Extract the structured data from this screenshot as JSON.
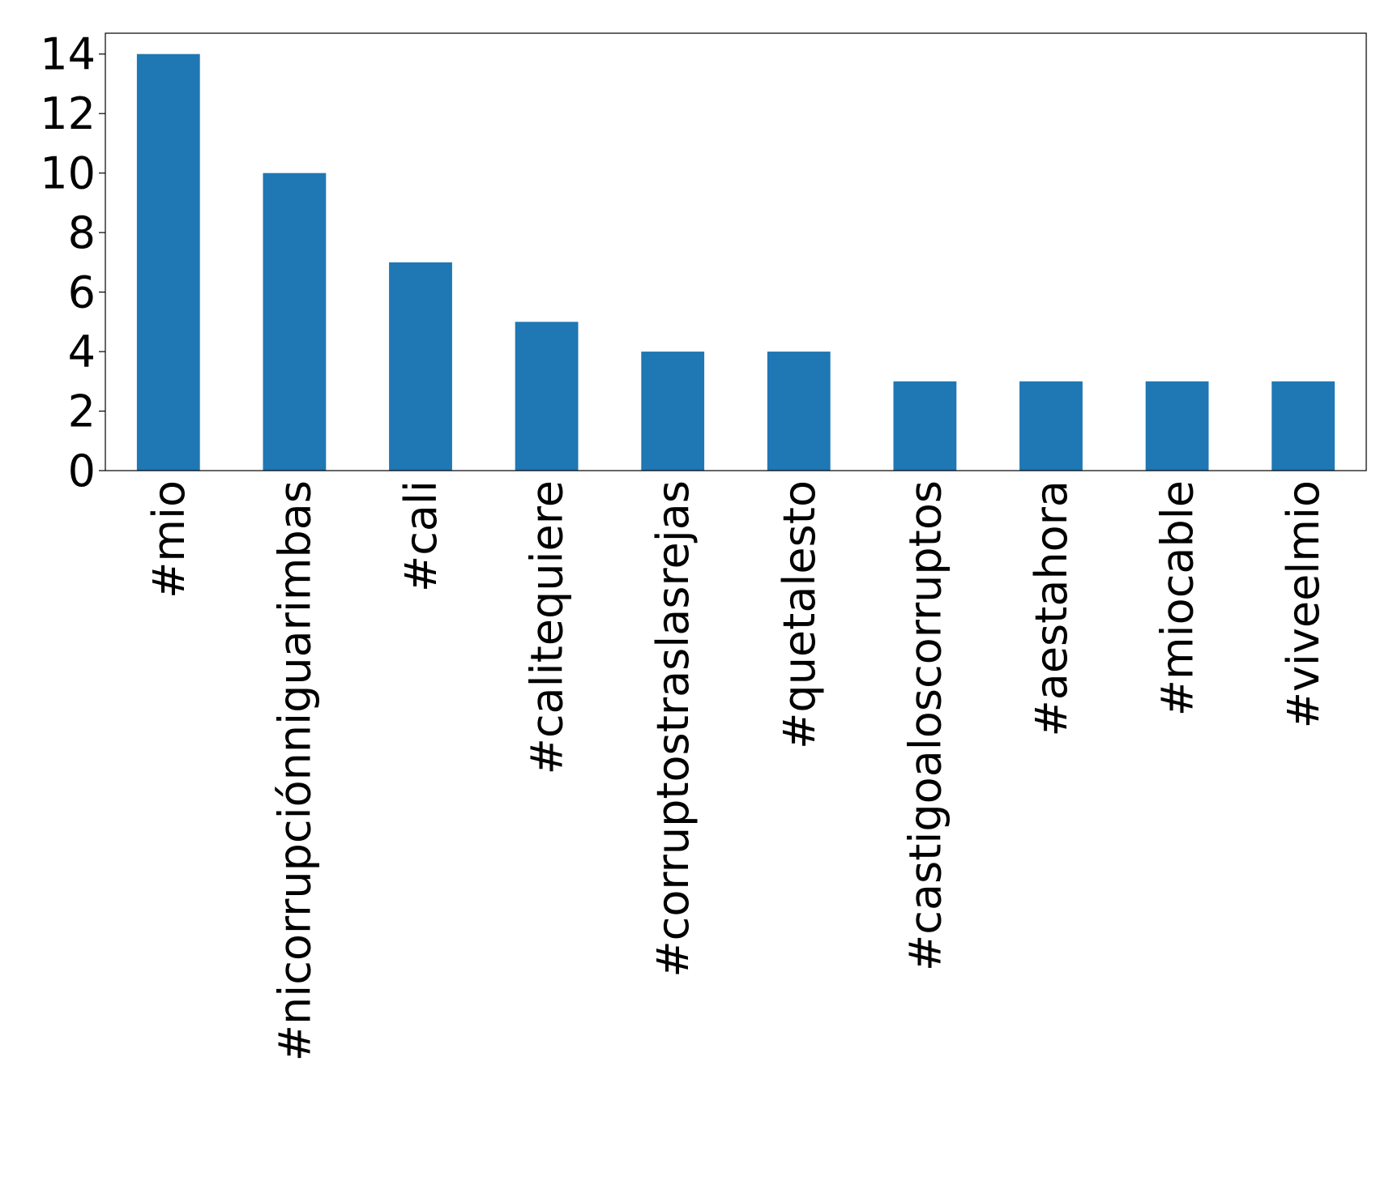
{
  "chart_data": {
    "type": "bar",
    "categories": [
      "#mio",
      "#nicorrupciónniguarimbas",
      "#cali",
      "#calitequiere",
      "#corruptostraslasrejas",
      "#quetalesto",
      "#castigoaloscorruptos",
      "#aestahora",
      "#miocable",
      "#viveelmio"
    ],
    "values": [
      14,
      10,
      7,
      5,
      4,
      4,
      3,
      3,
      3,
      3
    ],
    "color": "#1f77b4",
    "ylim": [
      0,
      14.7
    ],
    "yticks": [
      0,
      2,
      4,
      6,
      8,
      10,
      12,
      14
    ],
    "grid": false
  }
}
